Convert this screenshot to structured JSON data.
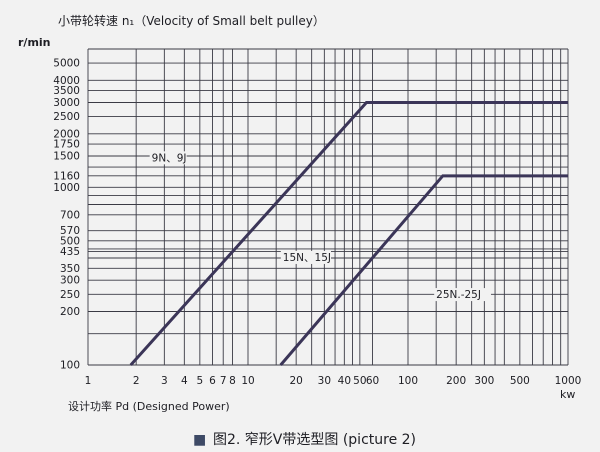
{
  "chart_data": {
    "type": "line",
    "title": "小带轮转速 n₁（Velocity of Small belt pulley）",
    "ylabel": "r/min",
    "xlabel": "设计功率 Pd (Designed Power)",
    "x_unit": "kw",
    "caption_prefix": "■",
    "caption": "图2. 窄形V带选型图 (picture 2)",
    "x_scale": "log",
    "y_scale": "log",
    "xlim": [
      1,
      1000
    ],
    "ylim": [
      100,
      6000
    ],
    "grid": true,
    "x_ticks": [
      1,
      2,
      3,
      4,
      5,
      6,
      7,
      8,
      10,
      20,
      30,
      40,
      50,
      60,
      100,
      200,
      300,
      500,
      1000
    ],
    "x_tick_labels": [
      "1",
      "2",
      "3",
      "4",
      "5",
      "6",
      "7",
      "8",
      "10",
      "20",
      "30",
      "40",
      "50",
      "60",
      "100",
      "200",
      "300",
      "500",
      "1000"
    ],
    "y_ticks": [
      100,
      200,
      250,
      300,
      350,
      435,
      500,
      570,
      700,
      1000,
      1160,
      1500,
      1750,
      2000,
      2500,
      3000,
      3500,
      4000,
      5000
    ],
    "y_tick_labels": [
      "100",
      "200",
      "250",
      "300",
      "350",
      "435",
      "500",
      "570",
      "700",
      "1000",
      "1160",
      "1500",
      "1750",
      "2000",
      "2500",
      "3000",
      "3500",
      "4000",
      "5000"
    ],
    "x_minor_grid": [
      15,
      25,
      35,
      45,
      150,
      250,
      350,
      400,
      600,
      700,
      800,
      900
    ],
    "y_minor_grid": [
      150,
      400,
      450,
      800,
      900,
      1300
    ],
    "series": [
      {
        "name": "9N、9J",
        "x": [
          1.85,
          55,
          1000
        ],
        "y": [
          100,
          3000,
          3000
        ]
      },
      {
        "name": "15N、15J",
        "x": [
          16,
          165,
          1000
        ],
        "y": [
          100,
          1160,
          1160
        ]
      },
      {
        "name": "25N、25J",
        "x": [],
        "y": []
      }
    ],
    "region_labels": [
      {
        "text": "9N、9J",
        "x": 2.5,
        "y": 1400
      },
      {
        "text": "15N、15J",
        "x": 16.5,
        "y": 385
      },
      {
        "text": "25N.-25J",
        "x": 150,
        "y": 238
      }
    ],
    "colors": {
      "background": "#f2f2f2",
      "grid": "#3a3a44",
      "series": "#3b3558",
      "text": "#1e1e24",
      "caption_box": "#3e4a66"
    }
  }
}
